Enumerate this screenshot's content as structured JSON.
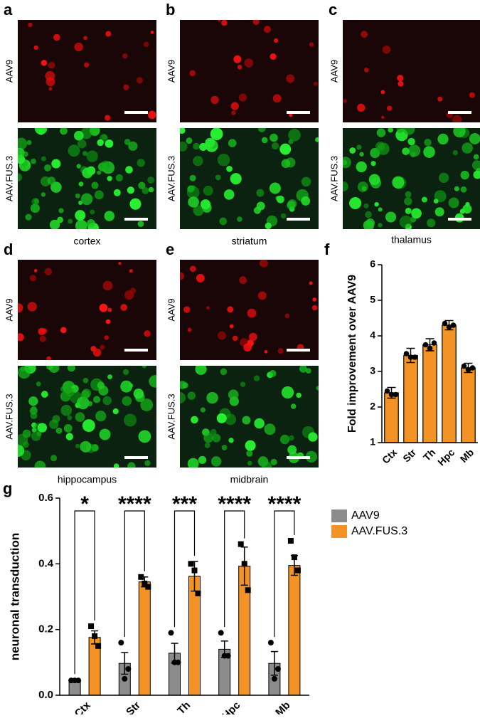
{
  "panels": [
    {
      "letter": "a",
      "rows": [
        "AAV9",
        "AAV.FUS.3"
      ],
      "region": "cortex"
    },
    {
      "letter": "b",
      "rows": [
        "AAV9",
        "AAV.FUS.3"
      ],
      "region": "striatum"
    },
    {
      "letter": "c",
      "rows": [
        "AAV9",
        "AAV.FUS.3"
      ],
      "region": "thalamus"
    },
    {
      "letter": "d",
      "rows": [
        "AAV9",
        "AAV.FUS.3"
      ],
      "region": "hippocampus"
    },
    {
      "letter": "e",
      "rows": [
        "AAV9",
        "AAV.FUS.3"
      ],
      "region": "midbrain"
    }
  ],
  "chart_data": [
    {
      "type": "bar",
      "panel": "f",
      "y_label": "Fold improvement over AAV9",
      "categories": [
        "Ctx",
        "Str",
        "Th",
        "Hpc",
        "Mb"
      ],
      "values": [
        2.4,
        3.45,
        3.75,
        4.3,
        3.1
      ],
      "errors": [
        0.15,
        0.2,
        0.17,
        0.13,
        0.13
      ],
      "points": [
        [
          2.45,
          2.35,
          2.35
        ],
        [
          3.5,
          3.4,
          3.4
        ],
        [
          3.75,
          3.65,
          3.8
        ],
        [
          4.35,
          4.25,
          4.3
        ],
        [
          3.15,
          3.05,
          3.1
        ]
      ],
      "color": "#f39325",
      "ylim": [
        1,
        6
      ],
      "yticks": [
        1,
        2,
        3,
        4,
        5,
        6
      ]
    },
    {
      "type": "grouped_bar",
      "panel": "g",
      "y_label": "neuronal transduction",
      "categories": [
        "Ctx",
        "Str",
        "Th",
        "Hpc",
        "Mb"
      ],
      "series": [
        {
          "name": "AAV9",
          "color": "#8c8c8c",
          "values": [
            0.045,
            0.097,
            0.128,
            0.14,
            0.097
          ],
          "errors": [
            0.002,
            0.033,
            0.03,
            0.025,
            0.036
          ],
          "points": [
            [
              0.045,
              0.045,
              0.045
            ],
            [
              0.16,
              0.05,
              0.08
            ],
            [
              0.19,
              0.1,
              0.1
            ],
            [
              0.19,
              0.12,
              0.12
            ],
            [
              0.16,
              0.05,
              0.08
            ]
          ]
        },
        {
          "name": "AAV.FUS.3",
          "color": "#f39325",
          "values": [
            0.176,
            0.345,
            0.362,
            0.393,
            0.395
          ],
          "errors": [
            0.02,
            0.015,
            0.045,
            0.058,
            0.03
          ],
          "points": [
            [
              0.21,
              0.18,
              0.15
            ],
            [
              0.36,
              0.34,
              0.33
            ],
            [
              0.4,
              0.38,
              0.31
            ],
            [
              0.46,
              0.4,
              0.32
            ],
            [
              0.47,
              0.42,
              0.38
            ]
          ]
        }
      ],
      "significance": [
        "*",
        "****",
        "***",
        "****",
        "****"
      ],
      "ylim": [
        0,
        0.6
      ],
      "yticks": [
        {
          "value": 0,
          "label": "0.0"
        },
        0.2,
        0.4,
        0.6
      ],
      "legend": "right"
    }
  ]
}
